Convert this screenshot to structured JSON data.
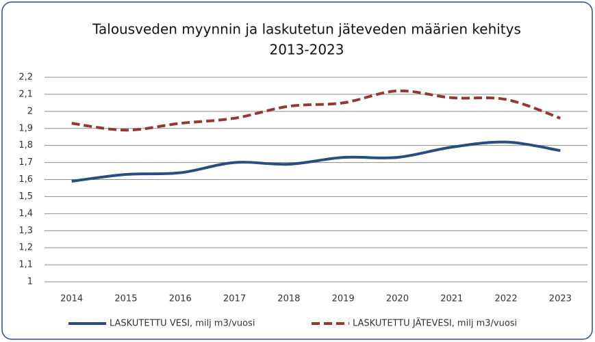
{
  "chart_data": {
    "type": "line",
    "title": [
      "Talousveden myynnin ja laskutetun jäteveden määrien kehitys",
      "2013-2023"
    ],
    "categories": [
      "2014",
      "2015",
      "2016",
      "2017",
      "2018",
      "2019",
      "2020",
      "2021",
      "2022",
      "2023"
    ],
    "series": [
      {
        "name": "LASKUTETTU VESI, milj m3/vuosi",
        "color": "#2a4d7f",
        "dash": false,
        "values": [
          1.59,
          1.63,
          1.64,
          1.7,
          1.69,
          1.73,
          1.73,
          1.79,
          1.82,
          1.77
        ]
      },
      {
        "name": "LASKUTETTU JÄTEVESI, milj m3/vuosi",
        "color": "#953735",
        "dash": true,
        "values": [
          1.93,
          1.89,
          1.93,
          1.96,
          2.03,
          2.05,
          2.12,
          2.08,
          2.07,
          1.96
        ]
      }
    ],
    "ylim": [
      1,
      2.2
    ],
    "yticks": [
      1,
      {
        "value": 1.1,
        "label": "1,1"
      },
      {
        "value": 1.2,
        "label": "1,2"
      },
      {
        "value": 1.3,
        "label": "1,3"
      },
      {
        "value": 1.4,
        "label": "1,4"
      },
      {
        "value": 1.5,
        "label": "1,5"
      },
      {
        "value": 1.6,
        "label": "1,6"
      },
      {
        "value": 1.7,
        "label": "1,7"
      },
      {
        "value": 1.8,
        "label": "1,8"
      },
      {
        "value": 1.9,
        "label": "1,9"
      },
      2,
      {
        "value": 2.1,
        "label": "2,1"
      },
      {
        "value": 2.2,
        "label": "2,2"
      }
    ],
    "grid": true,
    "smooth": true,
    "legend": "bottom"
  }
}
